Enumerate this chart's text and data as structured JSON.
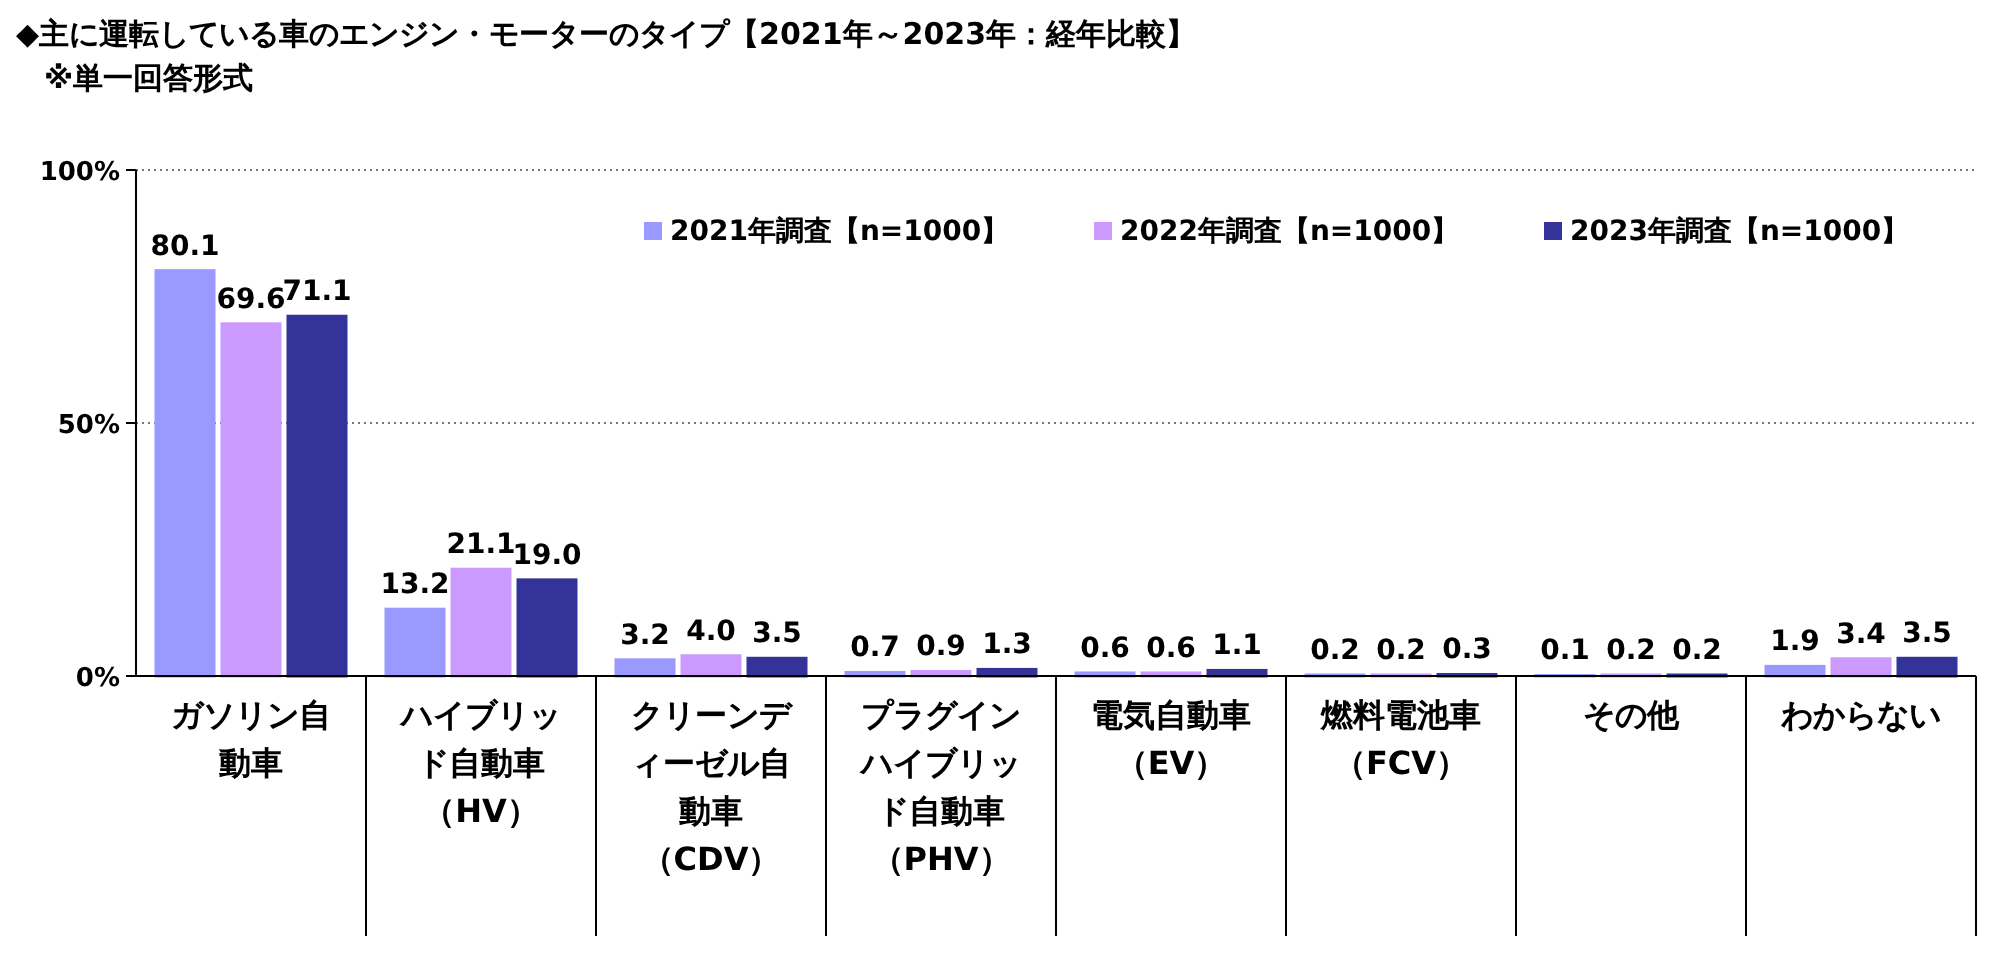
{
  "chart_data": {
    "type": "bar",
    "title": "◆主に運転している車のエンジン・モーターのタイプ【2021年～2023年：経年比較】",
    "subtitle": "※単一回答形式",
    "categories": [
      "ガソリン自動車",
      "ハイブリッド自動車（HV）",
      "クリーンディーゼル自動車（CDV）",
      "プラグインハイブリッド自動車（PHV）",
      "電気自動車（EV）",
      "燃料電池車（FCV）",
      "その他",
      "わからない"
    ],
    "series": [
      {
        "name": "2021年調査【n=1000】",
        "color": "#9999ff",
        "values": [
          80.1,
          13.2,
          3.2,
          0.7,
          0.6,
          0.2,
          0.1,
          1.9
        ],
        "value_labels": [
          "80.1",
          "13.2",
          "3.2",
          "0.7",
          "0.6",
          "0.2",
          "0.1",
          "1.9"
        ]
      },
      {
        "name": "2022年調査【n=1000】",
        "color": "#cc99ff",
        "values": [
          69.6,
          21.1,
          4.0,
          0.9,
          0.6,
          0.2,
          0.2,
          3.4
        ],
        "value_labels": [
          "69.6",
          "21.1",
          "4.0",
          "0.9",
          "0.6",
          "0.2",
          "0.2",
          "3.4"
        ]
      },
      {
        "name": "2023年調査【n=1000】",
        "color": "#333399",
        "values": [
          71.1,
          19.0,
          3.5,
          1.3,
          1.1,
          0.3,
          0.2,
          3.5
        ],
        "value_labels": [
          "71.1",
          "19.0",
          "3.5",
          "1.3",
          "1.1",
          "0.3",
          "0.2",
          "3.5"
        ]
      }
    ],
    "ylim": [
      0,
      100
    ],
    "yticks": [
      {
        "value": 0,
        "label": "0%"
      },
      {
        "value": 50,
        "label": "50%"
      },
      {
        "value": 100,
        "label": "100%"
      }
    ],
    "grid": "y",
    "legend": "top right",
    "data_labels": false
  }
}
